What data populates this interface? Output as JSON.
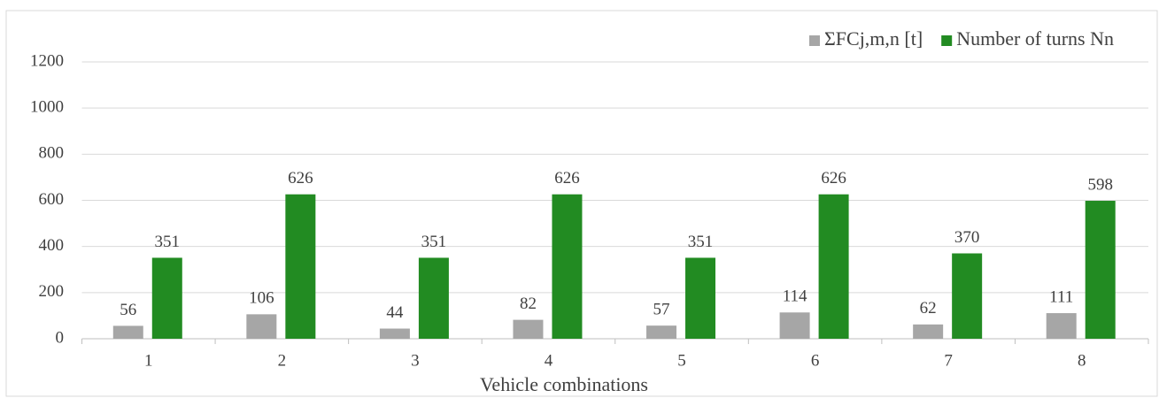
{
  "chart_data": {
    "type": "bar",
    "xlabel": "Vehicle combinations",
    "categories": [
      "1",
      "2",
      "3",
      "4",
      "5",
      "6",
      "7",
      "8"
    ],
    "series": [
      {
        "name": "ΣFCj,m,n  [t]",
        "color": "#a6a6a6",
        "values": [
          56,
          106,
          44,
          82,
          57,
          114,
          62,
          111
        ]
      },
      {
        "name": "Number of turns Nn",
        "color": "#228b22",
        "values": [
          351,
          626,
          351,
          626,
          351,
          626,
          370,
          598
        ]
      }
    ],
    "ylim": [
      0,
      1200
    ],
    "yticks": [
      0,
      200,
      400,
      600,
      800,
      1000,
      1200
    ],
    "grid": true,
    "legend": "top-right"
  }
}
